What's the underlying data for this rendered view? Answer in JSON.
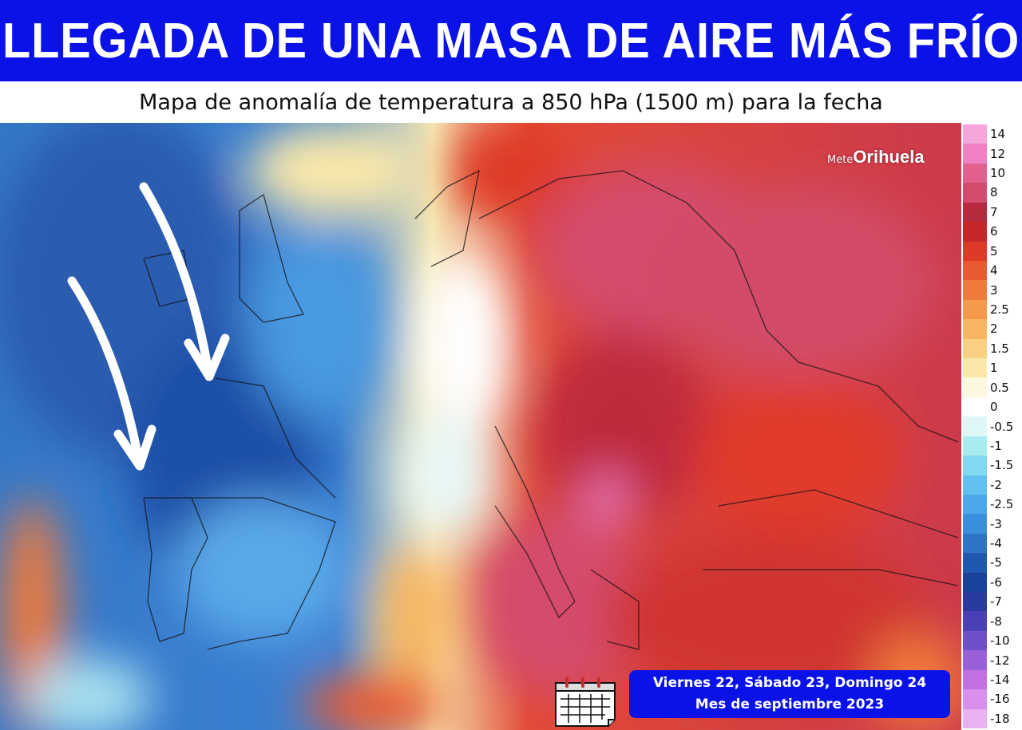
{
  "header": {
    "title": "LLEGADA DE UNA MASA DE AIRE MÁS FRÍO",
    "subtitle": "Mapa de anomalía de temperatura a 850 hPa (1500 m) para la fecha"
  },
  "logo": {
    "prefix": "Mete",
    "name": "Orihuela"
  },
  "legend": {
    "entries": [
      {
        "label": "14",
        "color": "#f6a6da"
      },
      {
        "label": "12",
        "color": "#f080c4"
      },
      {
        "label": "10",
        "color": "#e2608e"
      },
      {
        "label": "8",
        "color": "#d44c6c"
      },
      {
        "label": "7",
        "color": "#b62a3e"
      },
      {
        "label": "6",
        "color": "#c6282a"
      },
      {
        "label": "5",
        "color": "#de3a28"
      },
      {
        "label": "4",
        "color": "#ea5a30"
      },
      {
        "label": "3",
        "color": "#f07a3a"
      },
      {
        "label": "2.5",
        "color": "#f59a4a"
      },
      {
        "label": "2",
        "color": "#f8b662"
      },
      {
        "label": "1.5",
        "color": "#f9d084"
      },
      {
        "label": "1",
        "color": "#fae8aa"
      },
      {
        "label": "0.5",
        "color": "#fdf7e0"
      },
      {
        "label": "0",
        "color": "#ffffff"
      },
      {
        "label": "-0.5",
        "color": "#dff7f8"
      },
      {
        "label": "-1",
        "color": "#a8ecf0"
      },
      {
        "label": "-1.5",
        "color": "#82d8f0"
      },
      {
        "label": "-2",
        "color": "#62c0f0"
      },
      {
        "label": "-2.5",
        "color": "#4aa8e8"
      },
      {
        "label": "-3",
        "color": "#3a8ede"
      },
      {
        "label": "-4",
        "color": "#2e74c8"
      },
      {
        "label": "-5",
        "color": "#1e58b0"
      },
      {
        "label": "-6",
        "color": "#1a4298"
      },
      {
        "label": "-7",
        "color": "#2a3aa0"
      },
      {
        "label": "-8",
        "color": "#4a40b8"
      },
      {
        "label": "-10",
        "color": "#7050c8"
      },
      {
        "label": "-12",
        "color": "#9a60d8"
      },
      {
        "label": "-14",
        "color": "#c070e0"
      },
      {
        "label": "-16",
        "color": "#d890ec"
      },
      {
        "label": "-18",
        "color": "#eab0f4"
      }
    ]
  },
  "date_box": {
    "line1": "Viernes 22, Sábado 23, Domingo 24",
    "line2": "Mes de septiembre 2023"
  }
}
